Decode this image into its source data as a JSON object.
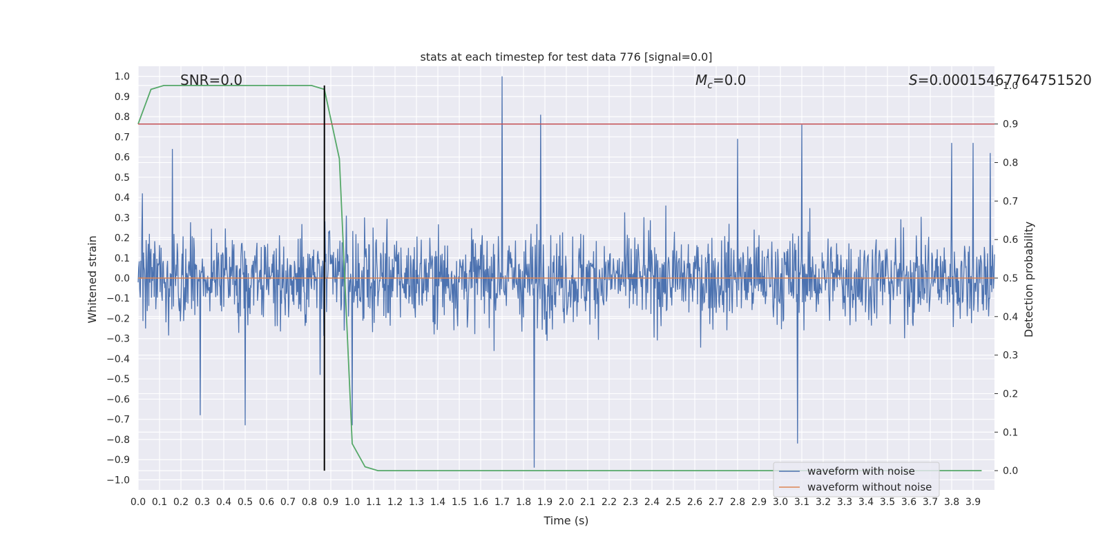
{
  "chart_data": {
    "type": "line",
    "title": "stats at each timestep for test data 776 [signal=0.0]",
    "xlabel": "Time (s)",
    "ylabel": "Whitened strain",
    "y2label": "Detection probability",
    "xlim": [
      0.0,
      4.0
    ],
    "ylim": [
      -1.05,
      1.05
    ],
    "y2lim": [
      -0.05,
      1.05
    ],
    "x_ticks": [
      "0.0",
      "0.1",
      "0.2",
      "0.3",
      "0.4",
      "0.5",
      "0.6",
      "0.7",
      "0.8",
      "0.9",
      "1.0",
      "1.1",
      "1.2",
      "1.3",
      "1.4",
      "1.5",
      "1.6",
      "1.7",
      "1.8",
      "1.9",
      "2.0",
      "2.1",
      "2.2",
      "2.3",
      "2.4",
      "2.5",
      "2.6",
      "2.7",
      "2.8",
      "2.9",
      "3.0",
      "3.1",
      "3.2",
      "3.3",
      "3.4",
      "3.5",
      "3.6",
      "3.7",
      "3.8",
      "3.9"
    ],
    "y_ticks": [
      "1.0",
      "0.9",
      "0.8",
      "0.7",
      "0.6",
      "0.5",
      "0.4",
      "0.3",
      "0.2",
      "0.1",
      "0.0",
      "−0.1",
      "−0.2",
      "−0.3",
      "−0.4",
      "−0.5",
      "−0.6",
      "−0.7",
      "−0.8",
      "−0.9",
      "−1.0"
    ],
    "y2_ticks": [
      "1.0",
      "0.9",
      "0.8",
      "0.7",
      "0.6",
      "0.5",
      "0.4",
      "0.3",
      "0.2",
      "0.1",
      "0.0"
    ],
    "grid": true,
    "legend_position": "bottom-right",
    "annotations": {
      "snr": "SNR=0.0",
      "mc_symbol": "M",
      "mc_sub": "c",
      "mc_value": "=0.0",
      "s_symbol": "S",
      "s_value": "=0.00015467764751520"
    },
    "series": [
      {
        "name": "waveform with noise",
        "color": "#4c72b0",
        "axis": "left",
        "description_kind": "noise",
        "spikes": [
          {
            "x": 0.02,
            "y": 0.42
          },
          {
            "x": 0.16,
            "y": 0.64
          },
          {
            "x": 0.29,
            "y": -0.68
          },
          {
            "x": 0.5,
            "y": -0.73
          },
          {
            "x": 0.85,
            "y": -0.48
          },
          {
            "x": 1.0,
            "y": -0.73
          },
          {
            "x": 1.7,
            "y": 1.0
          },
          {
            "x": 1.85,
            "y": -0.94
          },
          {
            "x": 1.88,
            "y": 0.81
          },
          {
            "x": 2.8,
            "y": 0.69
          },
          {
            "x": 3.08,
            "y": -0.82
          },
          {
            "x": 3.1,
            "y": 0.76
          },
          {
            "x": 3.8,
            "y": 0.67
          },
          {
            "x": 3.9,
            "y": 0.67
          },
          {
            "x": 3.98,
            "y": 0.62
          }
        ],
        "envelope_p99": 0.5
      },
      {
        "name": "waveform without noise",
        "color": "#dd8452",
        "axis": "left",
        "x": [
          0.0,
          4.0
        ],
        "y": [
          0.0,
          0.0
        ]
      },
      {
        "name": "",
        "color": "#55a868",
        "axis": "right",
        "x": [
          0.0,
          0.06,
          0.12,
          0.18,
          0.24,
          0.3,
          0.36,
          0.42,
          0.48,
          0.54,
          0.6,
          0.66,
          0.72,
          0.78,
          0.81,
          0.87,
          0.94,
          1.0,
          1.06,
          1.12,
          1.2,
          1.5,
          2.0,
          3.0,
          3.94
        ],
        "y": [
          0.9,
          0.99,
          1.0,
          1.0,
          1.0,
          1.0,
          1.0,
          1.0,
          1.0,
          1.0,
          1.0,
          1.0,
          1.0,
          1.0,
          1.0,
          0.99,
          0.81,
          0.07,
          0.01,
          0.0,
          0.0,
          0.0,
          0.0,
          0.0,
          0.0
        ]
      }
    ],
    "threshold_line": {
      "color": "#c44e52",
      "axis": "right",
      "value": 0.9
    },
    "vertical_marker": {
      "color": "#000000",
      "x": 0.87
    }
  }
}
